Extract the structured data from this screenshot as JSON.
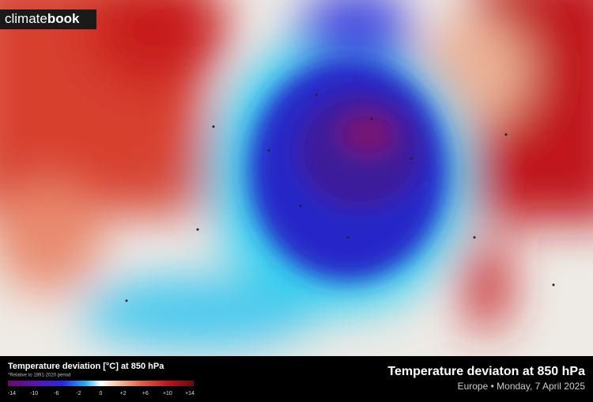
{
  "logo": {
    "light": "climate",
    "bold": "book"
  },
  "legend": {
    "title": "Temperature deviation [°C] at 850 hPa",
    "note": "*Relative to 1991-2020 period",
    "ticks": [
      "-14",
      "-10",
      "-6",
      "-2",
      "0",
      "+2",
      "+6",
      "+10",
      "+14"
    ]
  },
  "header": {
    "title": "Temperature deviaton at 850 hPa",
    "subtitle": "Europe • Monday, 7 April 2025"
  }
}
